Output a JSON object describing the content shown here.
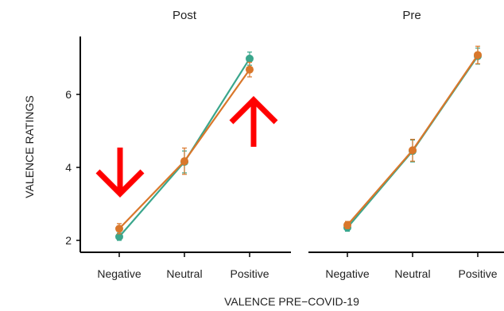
{
  "colors": {
    "teal": "#3aa68c",
    "orange": "#d9772b",
    "arrow": "#ff0000",
    "axis": "#000000"
  },
  "chart_data": {
    "type": "line",
    "xlabel": "VALENCE PRE−COVID-19",
    "ylabel": "VALENCE RATINGS",
    "yticks": [
      2,
      4,
      6
    ],
    "ylim": [
      1.75,
      7.5
    ],
    "categories": [
      "Negative",
      "Neutral",
      "Positive"
    ],
    "panels": [
      {
        "title": "Post",
        "series": [
          {
            "color": "teal",
            "values": [
              2.1,
              4.15,
              6.98
            ],
            "error": [
              0.1,
              0.3,
              0.18
            ]
          },
          {
            "color": "orange",
            "values": [
              2.32,
              4.17,
              6.68
            ],
            "error": [
              0.14,
              0.36,
              0.2
            ]
          }
        ],
        "annotations": [
          {
            "type": "arrow-down",
            "near_category": "Negative",
            "color": "arrow"
          },
          {
            "type": "arrow-up",
            "near_category": "Positive",
            "color": "arrow"
          }
        ]
      },
      {
        "title": "Pre",
        "series": [
          {
            "color": "teal",
            "values": [
              2.35,
              4.45,
              7.05
            ],
            "error": [
              0.1,
              0.3,
              0.22
            ]
          },
          {
            "color": "orange",
            "values": [
              2.42,
              4.47,
              7.08
            ],
            "error": [
              0.1,
              0.3,
              0.24
            ]
          }
        ],
        "annotations": []
      }
    ]
  }
}
